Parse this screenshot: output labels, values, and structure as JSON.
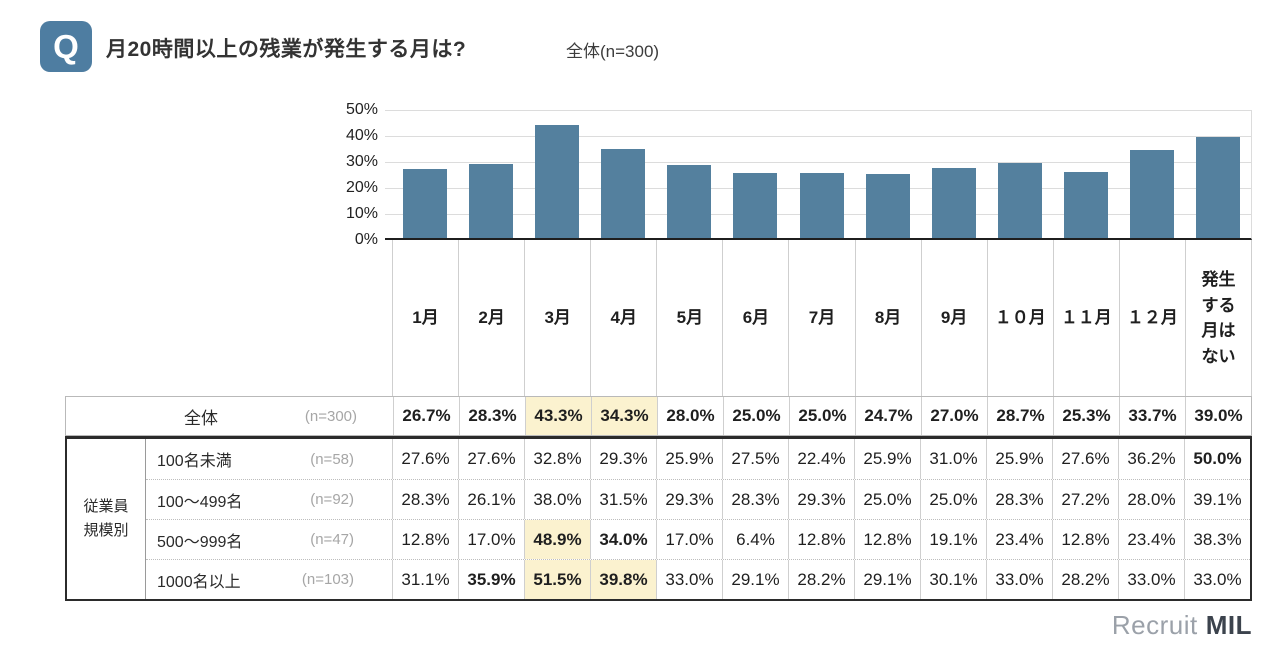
{
  "header": {
    "q_label": "Q",
    "title": "月20時間以上の残業が発生する月は?",
    "subtitle": "全体(n=300)"
  },
  "chart_data": {
    "type": "bar",
    "categories": [
      "1月",
      "2月",
      "3月",
      "4月",
      "5月",
      "6月",
      "7月",
      "8月",
      "9月",
      "10月",
      "11月",
      "12月",
      "発生する月はない"
    ],
    "values": [
      26.7,
      28.3,
      43.3,
      34.3,
      28.0,
      25.0,
      25.0,
      24.7,
      27.0,
      28.7,
      25.3,
      33.7,
      39.0
    ],
    "title": "月20時間以上の残業が発生する月は?(全体 n=300)",
    "xlabel": "",
    "ylabel": "",
    "ylim": [
      0,
      50
    ],
    "ytick_labels": [
      "50%",
      "40%",
      "30%",
      "20%",
      "10%",
      "0%"
    ],
    "grid": true,
    "legend": "none",
    "bar_color": "#54809e"
  },
  "table": {
    "column_headers": [
      "1月",
      "2月",
      "3月",
      "4月",
      "5月",
      "6月",
      "7月",
      "8月",
      "9月",
      "１０月",
      "１１月",
      "１２月",
      "発生\nする\n月は\nない"
    ],
    "overall_row": {
      "label": "全体",
      "n": "(n=300)",
      "cells": [
        {
          "v": "26.7%",
          "b": true,
          "h": false
        },
        {
          "v": "28.3%",
          "b": true,
          "h": false
        },
        {
          "v": "43.3%",
          "b": true,
          "h": true
        },
        {
          "v": "34.3%",
          "b": true,
          "h": true
        },
        {
          "v": "28.0%",
          "b": true,
          "h": false
        },
        {
          "v": "25.0%",
          "b": true,
          "h": false
        },
        {
          "v": "25.0%",
          "b": true,
          "h": false
        },
        {
          "v": "24.7%",
          "b": true,
          "h": false
        },
        {
          "v": "27.0%",
          "b": true,
          "h": false
        },
        {
          "v": "28.7%",
          "b": true,
          "h": false
        },
        {
          "v": "25.3%",
          "b": true,
          "h": false
        },
        {
          "v": "33.7%",
          "b": true,
          "h": false
        },
        {
          "v": "39.0%",
          "b": true,
          "h": false
        }
      ]
    },
    "group_label": "従業員\n規模別",
    "group_rows": [
      {
        "label": "100名未満",
        "n": "(n=58)",
        "cells": [
          {
            "v": "27.6%",
            "b": false,
            "h": false
          },
          {
            "v": "27.6%",
            "b": false,
            "h": false
          },
          {
            "v": "32.8%",
            "b": false,
            "h": false
          },
          {
            "v": "29.3%",
            "b": false,
            "h": false
          },
          {
            "v": "25.9%",
            "b": false,
            "h": false
          },
          {
            "v": "27.5%",
            "b": false,
            "h": false
          },
          {
            "v": "22.4%",
            "b": false,
            "h": false
          },
          {
            "v": "25.9%",
            "b": false,
            "h": false
          },
          {
            "v": "31.0%",
            "b": false,
            "h": false
          },
          {
            "v": "25.9%",
            "b": false,
            "h": false
          },
          {
            "v": "27.6%",
            "b": false,
            "h": false
          },
          {
            "v": "36.2%",
            "b": false,
            "h": false
          },
          {
            "v": "50.0%",
            "b": true,
            "h": false
          }
        ]
      },
      {
        "label": "100〜499名",
        "n": "(n=92)",
        "cells": [
          {
            "v": "28.3%",
            "b": false,
            "h": false
          },
          {
            "v": "26.1%",
            "b": false,
            "h": false
          },
          {
            "v": "38.0%",
            "b": false,
            "h": false
          },
          {
            "v": "31.5%",
            "b": false,
            "h": false
          },
          {
            "v": "29.3%",
            "b": false,
            "h": false
          },
          {
            "v": "28.3%",
            "b": false,
            "h": false
          },
          {
            "v": "29.3%",
            "b": false,
            "h": false
          },
          {
            "v": "25.0%",
            "b": false,
            "h": false
          },
          {
            "v": "25.0%",
            "b": false,
            "h": false
          },
          {
            "v": "28.3%",
            "b": false,
            "h": false
          },
          {
            "v": "27.2%",
            "b": false,
            "h": false
          },
          {
            "v": "28.0%",
            "b": false,
            "h": false
          },
          {
            "v": "39.1%",
            "b": false,
            "h": false
          }
        ]
      },
      {
        "label": "500〜999名",
        "n": "(n=47)",
        "cells": [
          {
            "v": "12.8%",
            "b": false,
            "h": false
          },
          {
            "v": "17.0%",
            "b": false,
            "h": false
          },
          {
            "v": "48.9%",
            "b": true,
            "h": true
          },
          {
            "v": "34.0%",
            "b": true,
            "h": false
          },
          {
            "v": "17.0%",
            "b": false,
            "h": false
          },
          {
            "v": "6.4%",
            "b": false,
            "h": false
          },
          {
            "v": "12.8%",
            "b": false,
            "h": false
          },
          {
            "v": "12.8%",
            "b": false,
            "h": false
          },
          {
            "v": "19.1%",
            "b": false,
            "h": false
          },
          {
            "v": "23.4%",
            "b": false,
            "h": false
          },
          {
            "v": "12.8%",
            "b": false,
            "h": false
          },
          {
            "v": "23.4%",
            "b": false,
            "h": false
          },
          {
            "v": "38.3%",
            "b": false,
            "h": false
          }
        ]
      },
      {
        "label": "1000名以上",
        "n": "(n=103)",
        "cells": [
          {
            "v": "31.1%",
            "b": false,
            "h": false
          },
          {
            "v": "35.9%",
            "b": true,
            "h": false
          },
          {
            "v": "51.5%",
            "b": true,
            "h": true
          },
          {
            "v": "39.8%",
            "b": true,
            "h": true
          },
          {
            "v": "33.0%",
            "b": false,
            "h": false
          },
          {
            "v": "29.1%",
            "b": false,
            "h": false
          },
          {
            "v": "28.2%",
            "b": false,
            "h": false
          },
          {
            "v": "29.1%",
            "b": false,
            "h": false
          },
          {
            "v": "30.1%",
            "b": false,
            "h": false
          },
          {
            "v": "33.0%",
            "b": false,
            "h": false
          },
          {
            "v": "28.2%",
            "b": false,
            "h": false
          },
          {
            "v": "33.0%",
            "b": false,
            "h": false
          },
          {
            "v": "33.0%",
            "b": false,
            "h": false
          }
        ]
      }
    ]
  },
  "footer": {
    "brand_gray": "Recruit",
    "brand_dark": "MIL"
  }
}
